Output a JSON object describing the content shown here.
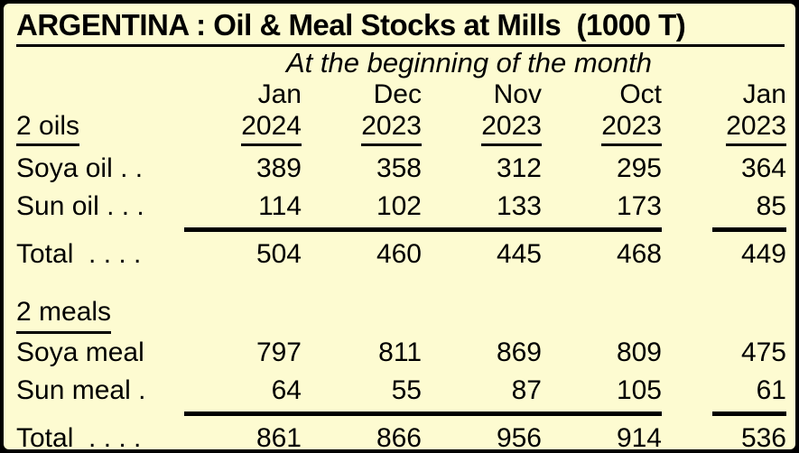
{
  "panel": {
    "title": "ARGENTINA : Oil & Meal Stocks at Mills  (1000 T)",
    "subtitle": "At the beginning of the month"
  },
  "colors": {
    "background": "#FDFBD1",
    "text": "#000000",
    "border": "#000000"
  },
  "table": {
    "columns": [
      {
        "month": "Jan",
        "year": "2024"
      },
      {
        "month": "Dec",
        "year": "2023"
      },
      {
        "month": "Nov",
        "year": "2023"
      },
      {
        "month": "Oct",
        "year": "2023"
      },
      {
        "month": "Jan",
        "year": "2023"
      }
    ],
    "sections": [
      {
        "heading": "2 oils",
        "rows": [
          {
            "label": "Soya oil . .",
            "values": [
              389,
              358,
              312,
              295,
              364
            ]
          },
          {
            "label": "Sun oil . . .",
            "values": [
              114,
              102,
              133,
              173,
              85
            ]
          }
        ],
        "total": {
          "label": "Total  . . . .",
          "values": [
            504,
            460,
            445,
            468,
            449
          ]
        }
      },
      {
        "heading": "2 meals",
        "rows": [
          {
            "label": "Soya meal",
            "values": [
              797,
              811,
              869,
              809,
              475
            ]
          },
          {
            "label": "Sun meal .",
            "values": [
              64,
              55,
              87,
              105,
              61
            ]
          }
        ],
        "total": {
          "label": "Total  . . . .",
          "values": [
            861,
            866,
            956,
            914,
            536
          ]
        }
      }
    ]
  }
}
